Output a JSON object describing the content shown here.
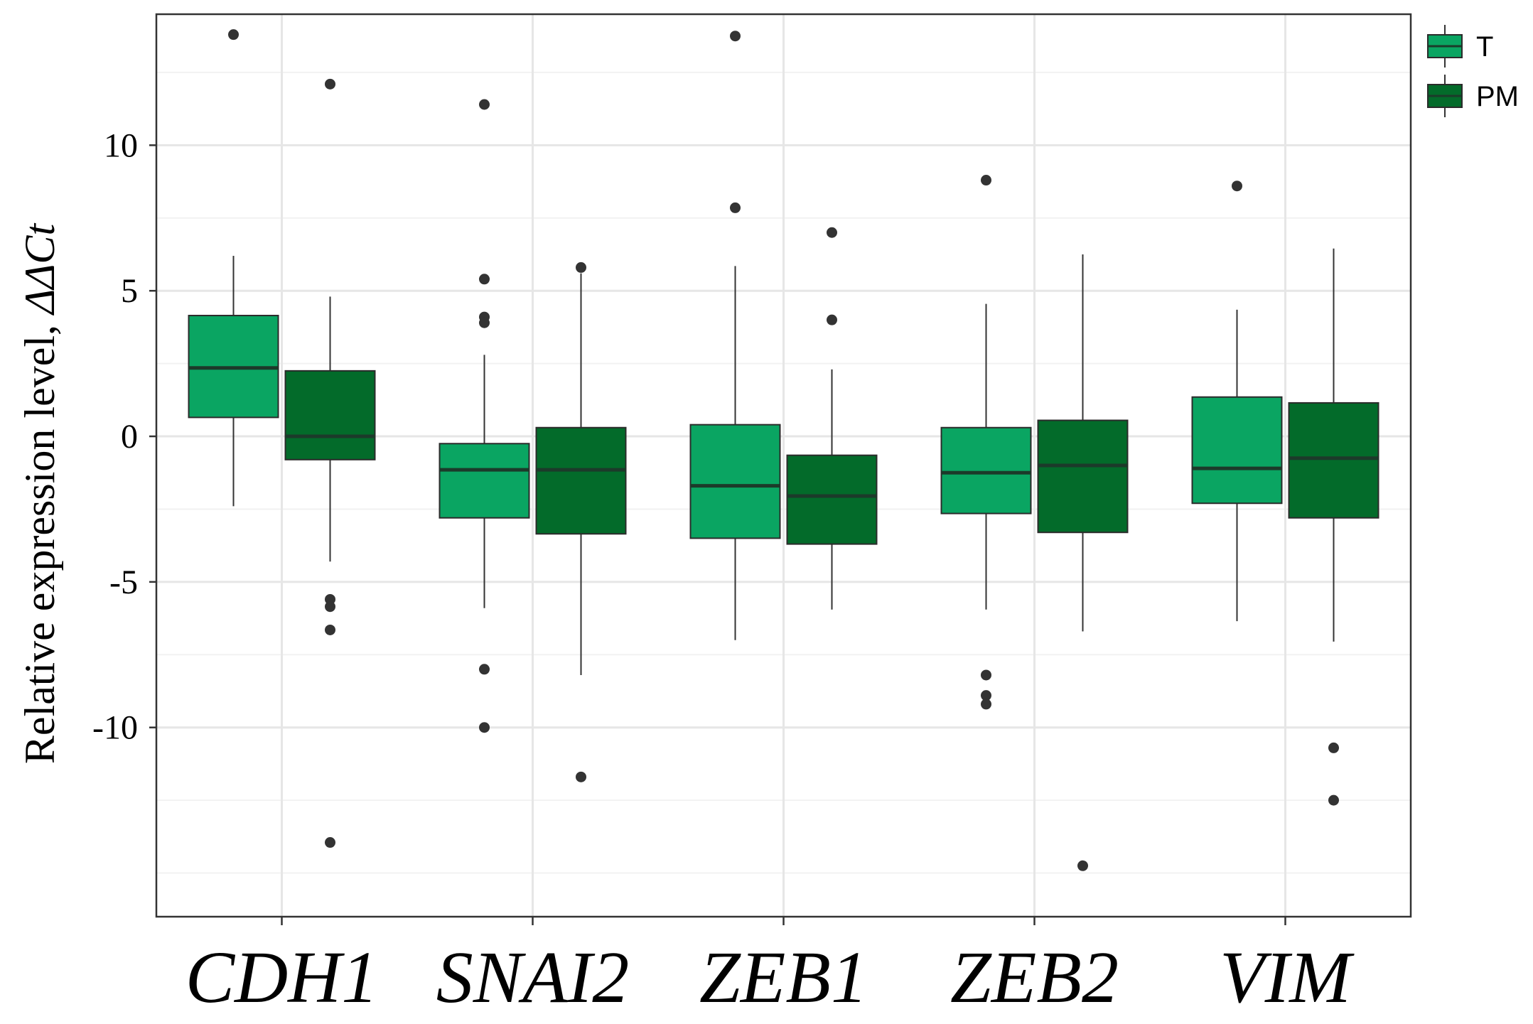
{
  "chart_data": {
    "type": "box",
    "ylabel_main": "Relative expression level, ",
    "ylabel_italic": "ΔΔCt",
    "ylim": [
      -16.5,
      14.5
    ],
    "yticks": [
      10,
      5,
      0,
      -5,
      -10
    ],
    "ytick_labels": [
      "10",
      "5",
      "0",
      "-5",
      "-10"
    ],
    "ygrid_minor": [
      12.5,
      7.5,
      2.5,
      -2.5,
      -7.5,
      -12.5,
      -15
    ],
    "categories": [
      "CDH1",
      "SNAI2",
      "ZEB1",
      "ZEB2",
      "VIM"
    ],
    "grid": true,
    "legend_position": "top-right",
    "series": [
      {
        "name": "T",
        "color": "#0aa562",
        "boxes": [
          {
            "lower_whisker": -2.4,
            "q1": 0.65,
            "median": 2.35,
            "q3": 4.15,
            "upper_whisker": 6.2,
            "outliers": [
              13.8
            ]
          },
          {
            "lower_whisker": -5.9,
            "q1": -2.8,
            "median": -1.15,
            "q3": -0.25,
            "upper_whisker": 2.8,
            "outliers": [
              11.4,
              5.4,
              4.1,
              3.9,
              -8.0,
              -10.0
            ]
          },
          {
            "lower_whisker": -7.0,
            "q1": -3.5,
            "median": -1.7,
            "q3": 0.4,
            "upper_whisker": 5.85,
            "outliers": [
              13.75,
              7.85
            ]
          },
          {
            "lower_whisker": -5.95,
            "q1": -2.65,
            "median": -1.25,
            "q3": 0.3,
            "upper_whisker": 4.55,
            "outliers": [
              8.8,
              -8.2,
              -8.9,
              -9.2
            ]
          },
          {
            "lower_whisker": -6.35,
            "q1": -2.3,
            "median": -1.1,
            "q3": 1.35,
            "upper_whisker": 4.35,
            "outliers": [
              8.6
            ]
          }
        ]
      },
      {
        "name": "PM",
        "color": "#036b2a",
        "boxes": [
          {
            "lower_whisker": -4.3,
            "q1": -0.8,
            "median": 0.0,
            "q3": 2.25,
            "upper_whisker": 4.8,
            "outliers": [
              12.1,
              -5.6,
              -5.85,
              -6.65,
              -13.95
            ]
          },
          {
            "lower_whisker": -8.2,
            "q1": -3.35,
            "median": -1.15,
            "q3": 0.3,
            "upper_whisker": 5.6,
            "outliers": [
              5.8,
              -11.7
            ]
          },
          {
            "lower_whisker": -5.95,
            "q1": -3.7,
            "median": -2.05,
            "q3": -0.65,
            "upper_whisker": 2.3,
            "outliers": [
              7.0,
              4.0
            ]
          },
          {
            "lower_whisker": -6.7,
            "q1": -3.3,
            "median": -1.0,
            "q3": 0.55,
            "upper_whisker": 6.25,
            "outliers": [
              -14.75
            ]
          },
          {
            "lower_whisker": -7.05,
            "q1": -2.8,
            "median": -0.75,
            "q3": 1.15,
            "upper_whisker": 6.45,
            "outliers": [
              -10.7,
              -12.5
            ]
          }
        ]
      }
    ]
  }
}
